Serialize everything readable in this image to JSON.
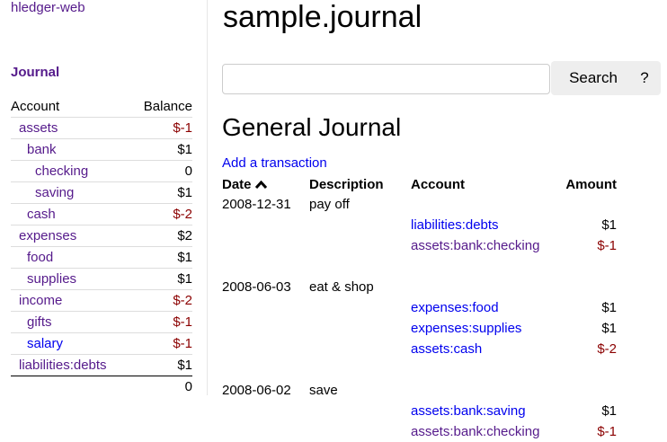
{
  "sidebar": {
    "brand": "hledger-web",
    "journal_link": "Journal",
    "headers": {
      "account": "Account",
      "balance": "Balance"
    },
    "accounts": [
      {
        "name": "assets",
        "balance": "$-1",
        "depth": 0,
        "visited": true
      },
      {
        "name": "bank",
        "balance": "$1",
        "depth": 1,
        "visited": true
      },
      {
        "name": "checking",
        "balance": "0",
        "depth": 2,
        "visited": true
      },
      {
        "name": "saving",
        "balance": "$1",
        "depth": 2,
        "visited": true
      },
      {
        "name": "cash",
        "balance": "$-2",
        "depth": 1,
        "visited": true
      },
      {
        "name": "expenses",
        "balance": "$2",
        "depth": 0,
        "visited": true
      },
      {
        "name": "food",
        "balance": "$1",
        "depth": 1,
        "visited": true
      },
      {
        "name": "supplies",
        "balance": "$1",
        "depth": 1,
        "visited": true
      },
      {
        "name": "income",
        "balance": "$-2",
        "depth": 0,
        "visited": true
      },
      {
        "name": "gifts",
        "balance": "$-1",
        "depth": 1,
        "visited": true
      },
      {
        "name": "salary",
        "balance": "$-1",
        "depth": 1,
        "visited": false
      },
      {
        "name": "liabilities:debts",
        "balance": "$1",
        "depth": 0,
        "visited": true
      }
    ],
    "total": "0"
  },
  "main": {
    "title": "sample.journal",
    "search": {
      "value": "",
      "button": "Search",
      "help": "?"
    },
    "journal_title": "General Journal",
    "add_link": "Add a transaction",
    "columns": {
      "date": "Date",
      "description": "Description",
      "account": "Account",
      "amount": "Amount"
    },
    "sort_icon": "chevron-up-icon",
    "transactions": [
      {
        "date": "2008-12-31",
        "description": "pay off",
        "postings": [
          {
            "account": "liabilities:debts",
            "amount": "$1",
            "visited": false
          },
          {
            "account": "assets:bank:checking",
            "amount": "$-1",
            "visited": true
          }
        ]
      },
      {
        "date": "2008-06-03",
        "description": "eat & shop",
        "postings": [
          {
            "account": "expenses:food",
            "amount": "$1",
            "visited": false
          },
          {
            "account": "expenses:supplies",
            "amount": "$1",
            "visited": false
          },
          {
            "account": "assets:cash",
            "amount": "$-2",
            "visited": false
          }
        ]
      },
      {
        "date": "2008-06-02",
        "description": "save",
        "postings": [
          {
            "account": "assets:bank:saving",
            "amount": "$1",
            "visited": false
          },
          {
            "account": "assets:bank:checking",
            "amount": "$-1",
            "visited": true
          }
        ]
      }
    ]
  },
  "colors": {
    "link": "#0000ee",
    "visited": "#551a8b",
    "negative": "#8b0000"
  }
}
